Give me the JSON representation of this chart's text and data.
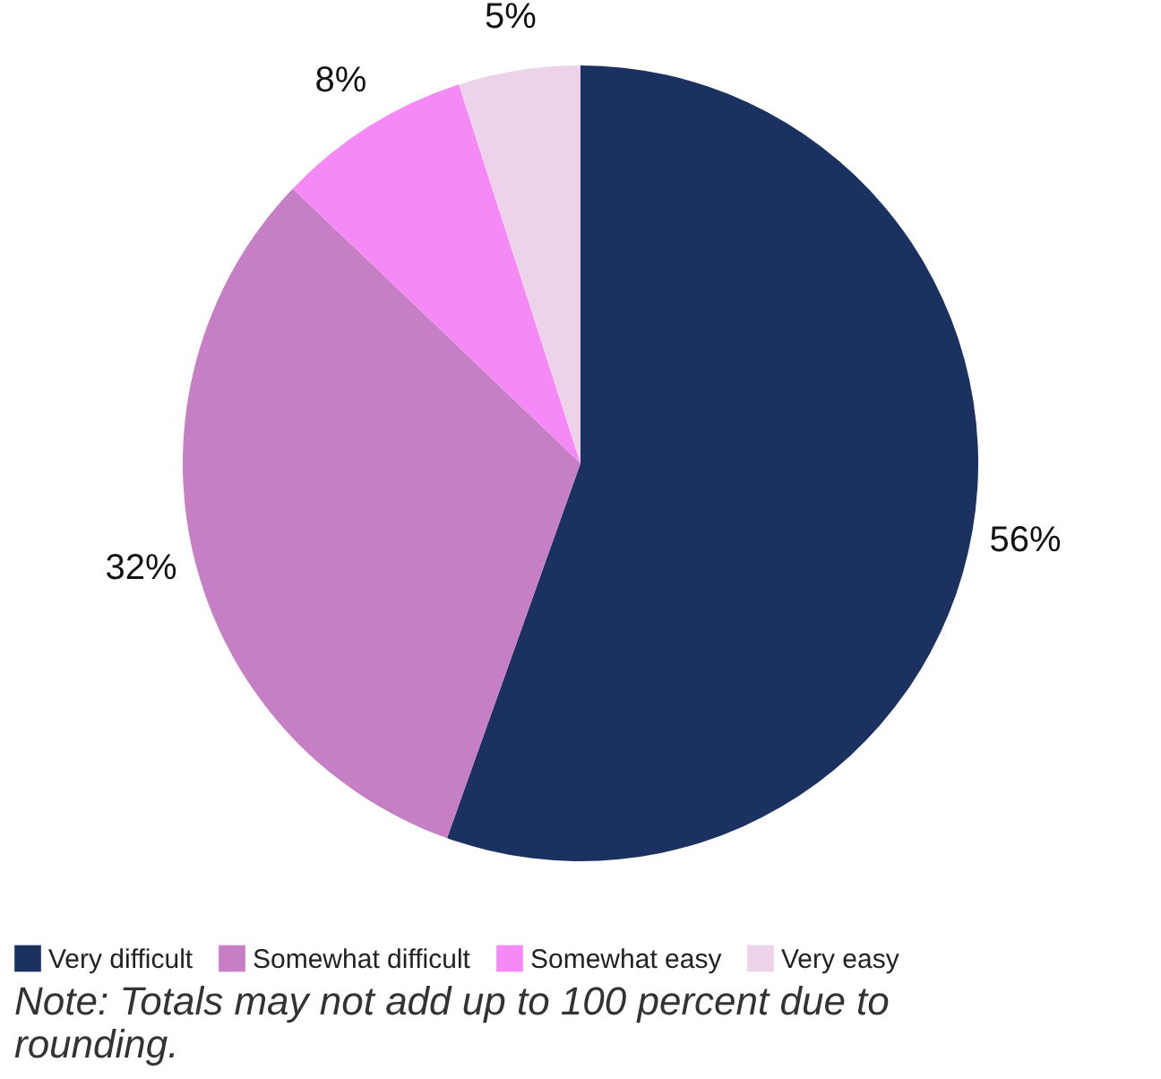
{
  "chart_data": {
    "type": "pie",
    "categories": [
      "Very difficult",
      "Somewhat difficult",
      "Somewhat easy",
      "Very easy"
    ],
    "values": [
      56,
      32,
      8,
      5
    ],
    "value_labels": [
      "56%",
      "32%",
      "8%",
      "5%"
    ],
    "colors": [
      "#1b3160",
      "#c67fc4",
      "#f589f5",
      "#ecd3ea"
    ],
    "legend": "bottom",
    "annotations": [
      "Note: Totals may not add up to 100 percent due to rounding."
    ]
  }
}
